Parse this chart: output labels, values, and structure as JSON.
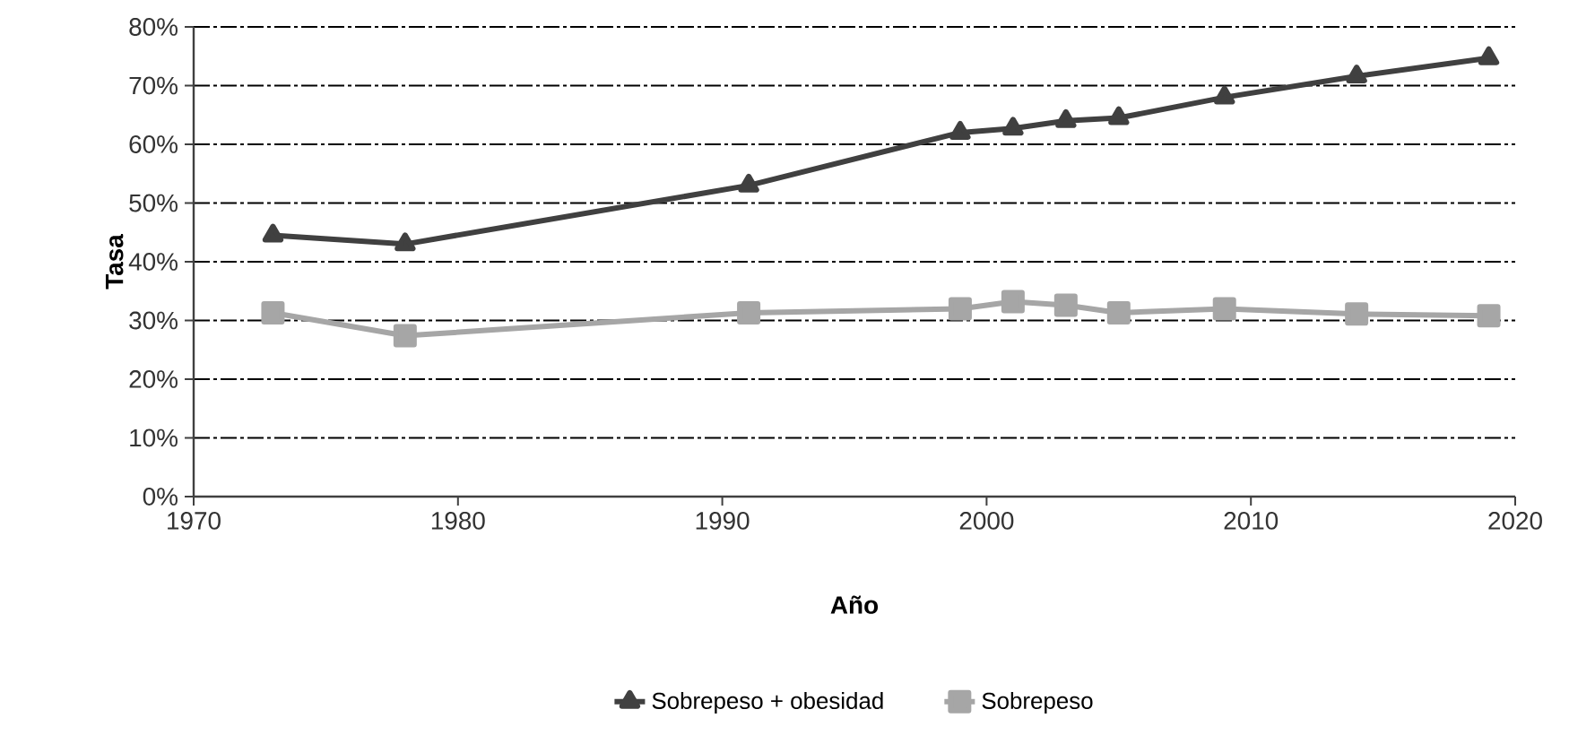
{
  "chart_data": {
    "type": "line",
    "xlabel": "Año",
    "ylabel": "Tasa",
    "xlim": [
      1970,
      2020
    ],
    "xticks": [
      1970,
      1980,
      1990,
      2000,
      2010,
      2020
    ],
    "ylim": [
      0,
      80
    ],
    "yticks": [
      {
        "value": 0,
        "label": "0%"
      },
      {
        "value": 10,
        "label": "10%"
      },
      {
        "value": 20,
        "label": "20%"
      },
      {
        "value": 30,
        "label": "30%"
      },
      {
        "value": 40,
        "label": "40%"
      },
      {
        "value": 50,
        "label": "50%"
      },
      {
        "value": 60,
        "label": "60%"
      },
      {
        "value": 70,
        "label": "70%"
      },
      {
        "value": 80,
        "label": "80%"
      }
    ],
    "grid": "y",
    "legend": "bottom",
    "line_style": "solid",
    "x": [
      1973,
      1978,
      1991,
      1999,
      2001,
      2003,
      2005,
      2009,
      2014,
      2019
    ],
    "series": [
      {
        "name": "Sobrepeso + obesidad",
        "color": "#404040",
        "marker": "triangle",
        "values": [
          44.5,
          43,
          53,
          62,
          62.7,
          64,
          64.5,
          68,
          71.6,
          74.7
        ]
      },
      {
        "name": "Sobrepeso",
        "color": "#a6a6a6",
        "marker": "square",
        "values": [
          31.3,
          27.4,
          31.3,
          32,
          33.2,
          32.6,
          31.3,
          32,
          31.1,
          30.8
        ]
      }
    ]
  }
}
